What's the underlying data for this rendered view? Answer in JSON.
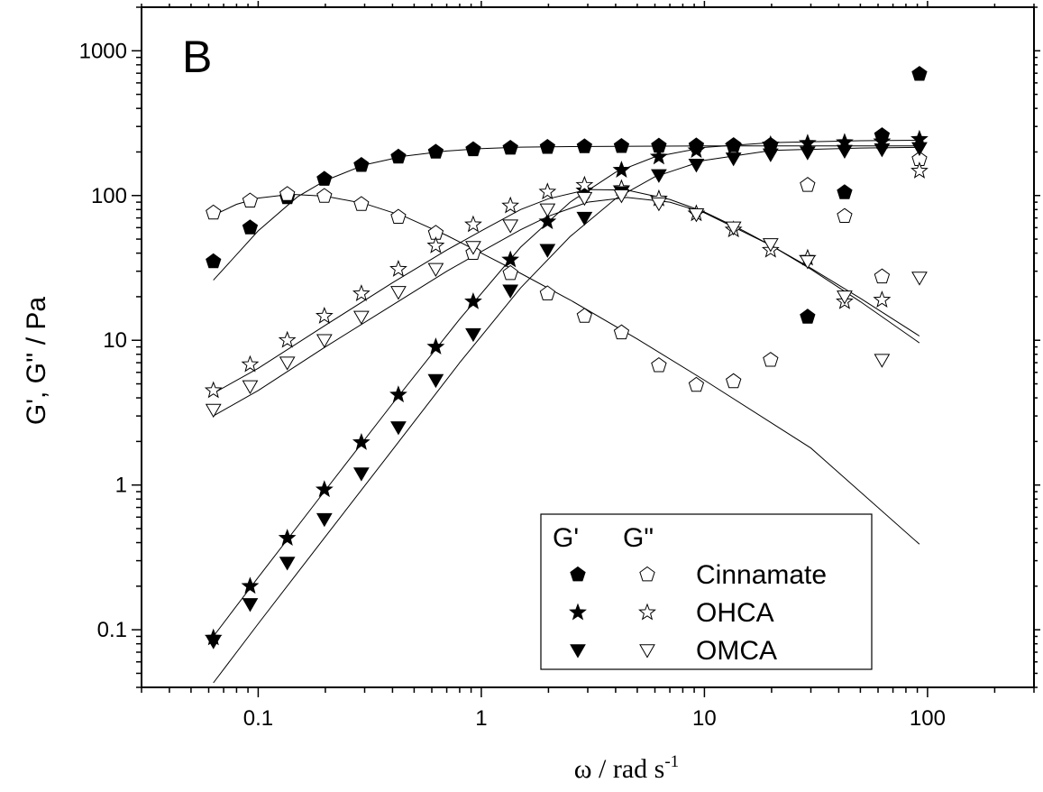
{
  "chart_data": {
    "type": "scatter",
    "panel_label": "B",
    "xlabel": "ω / rad s",
    "xlabel_sup": "-1",
    "ylabel": "G', G'' / Pa",
    "xscale": "log",
    "yscale": "log",
    "xlim": [
      0.03,
      300
    ],
    "ylim": [
      0.04,
      2000
    ],
    "x_ticks": [
      0.1,
      1,
      10,
      100
    ],
    "x_tick_labels": [
      "0.1",
      "1",
      "10",
      "100"
    ],
    "y_ticks": [
      0.1,
      1,
      10,
      100,
      1000
    ],
    "y_tick_labels": [
      "0.1",
      "1",
      "10",
      "100",
      "1000"
    ],
    "legend": {
      "placement": "bottom-right",
      "header_gp": "G'",
      "header_gpp": "G\"",
      "entries": [
        "Cinnamate",
        "OHCA",
        "OMCA"
      ]
    },
    "series": [
      {
        "name": "Cinnamate",
        "modulus": "G'",
        "marker": "pentagon",
        "filled": true,
        "x": [
          0.063,
          0.092,
          0.135,
          0.198,
          0.29,
          0.425,
          0.625,
          0.92,
          1.35,
          1.98,
          2.9,
          4.25,
          6.25,
          9.2,
          13.5,
          19.8,
          29,
          42.5,
          62.5,
          92
        ],
        "y": [
          35,
          60,
          97,
          130,
          162,
          185,
          200,
          208,
          213,
          216,
          218,
          219,
          220,
          221,
          222,
          223,
          14.5,
          105,
          260,
          690
        ]
      },
      {
        "name": "Cinnamate",
        "modulus": "G\"",
        "marker": "pentagon",
        "filled": false,
        "x": [
          0.063,
          0.092,
          0.135,
          0.198,
          0.29,
          0.425,
          0.625,
          0.92,
          1.35,
          1.98,
          2.9,
          4.25,
          6.25,
          9.2,
          13.5,
          19.8,
          29,
          42.5,
          62.5,
          92
        ],
        "y": [
          76,
          92,
          102,
          99,
          87,
          71,
          55,
          40,
          29,
          21,
          14.7,
          11.3,
          6.7,
          4.9,
          5.2,
          7.3,
          118,
          72,
          27.5,
          178
        ]
      },
      {
        "name": "OHCA",
        "modulus": "G'",
        "marker": "star",
        "filled": true,
        "x": [
          0.063,
          0.092,
          0.135,
          0.198,
          0.29,
          0.425,
          0.625,
          0.92,
          1.35,
          1.98,
          2.9,
          4.25,
          6.25,
          9.2,
          13.5,
          19.8,
          29,
          42.5,
          62.5,
          92
        ],
        "y": [
          0.088,
          0.2,
          0.43,
          0.93,
          1.97,
          4.2,
          9,
          18.5,
          36,
          66,
          108,
          150,
          185,
          205,
          218,
          225,
          230,
          233,
          236,
          245
        ]
      },
      {
        "name": "OHCA",
        "modulus": "G\"",
        "marker": "star",
        "filled": false,
        "x": [
          0.063,
          0.092,
          0.135,
          0.198,
          0.29,
          0.425,
          0.625,
          0.92,
          1.35,
          1.98,
          2.9,
          4.25,
          6.25,
          9.2,
          13.5,
          19.8,
          29,
          42.5,
          62.5,
          92
        ],
        "y": [
          4.5,
          6.8,
          10,
          14.7,
          21,
          31,
          45,
          63,
          85,
          106,
          118,
          112,
          95,
          75,
          58,
          42,
          37,
          18.5,
          19,
          148
        ]
      },
      {
        "name": "OMCA",
        "modulus": "G'",
        "marker": "triangle-down",
        "filled": true,
        "x": [
          0.063,
          0.092,
          0.135,
          0.198,
          0.29,
          0.425,
          0.625,
          0.92,
          1.35,
          1.98,
          2.9,
          4.25,
          6.25,
          9.2,
          13.5,
          19.8,
          29,
          42.5,
          62.5,
          92
        ],
        "y": [
          0.083,
          0.15,
          0.29,
          0.58,
          1.2,
          2.5,
          5.3,
          11,
          22,
          42,
          70,
          105,
          138,
          163,
          180,
          192,
          198,
          203,
          208,
          212
        ]
      },
      {
        "name": "OMCA",
        "modulus": "G\"",
        "marker": "triangle-down",
        "filled": false,
        "x": [
          0.063,
          0.092,
          0.135,
          0.198,
          0.29,
          0.425,
          0.625,
          0.92,
          1.35,
          1.98,
          2.9,
          4.25,
          6.25,
          9.2,
          13.5,
          19.8,
          29,
          42.5,
          62.5,
          92
        ],
        "y": [
          3.3,
          4.8,
          7,
          10,
          14.5,
          21.5,
          31,
          44,
          62,
          80,
          96,
          100,
          88,
          74,
          60,
          46,
          35,
          20,
          7.3,
          27
        ]
      }
    ],
    "fit_lines": [
      {
        "x": [
          0.063,
          0.1,
          0.15,
          0.2,
          0.3,
          0.45,
          0.7,
          1,
          1.5,
          2.5,
          5,
          10,
          30,
          92
        ],
        "y": [
          26,
          57,
          98,
          127,
          163,
          187,
          203,
          211,
          216,
          218,
          219,
          220,
          220,
          220
        ]
      },
      {
        "x": [
          0.063,
          0.08,
          0.1,
          0.14,
          0.2,
          0.3,
          0.45,
          0.7,
          1,
          1.5,
          2.5,
          5,
          10,
          30,
          92
        ],
        "y": [
          73,
          87,
          96,
          102,
          99,
          88,
          72,
          53,
          40,
          29,
          19,
          10.2,
          5.3,
          1.8,
          0.39
        ]
      },
      {
        "x": [
          0.063,
          0.1,
          0.2,
          0.4,
          0.8,
          1.5,
          2.5,
          4,
          6,
          10,
          20,
          50,
          92
        ],
        "y": [
          0.09,
          0.23,
          0.92,
          3.65,
          14,
          44,
          90,
          145,
          185,
          215,
          232,
          239,
          241
        ]
      },
      {
        "x": [
          0.063,
          0.1,
          0.2,
          0.4,
          0.7,
          1,
          1.5,
          2,
          3,
          4.5,
          7,
          10,
          15,
          20,
          30,
          50,
          92
        ],
        "y": [
          4.3,
          6.4,
          12.7,
          25,
          42,
          57,
          80,
          95,
          110,
          109,
          94,
          77,
          57,
          45,
          31.5,
          19.5,
          10.7
        ]
      },
      {
        "x": [
          0.063,
          0.1,
          0.2,
          0.4,
          0.8,
          1.5,
          2.5,
          4,
          6,
          10,
          20,
          50,
          92
        ],
        "y": [
          0.043,
          0.11,
          0.44,
          1.75,
          7,
          23,
          52,
          95,
          135,
          175,
          205,
          213,
          215
        ]
      },
      {
        "x": [
          0.063,
          0.1,
          0.2,
          0.4,
          0.7,
          1,
          1.5,
          2,
          3,
          4.5,
          7,
          10,
          15,
          20,
          30,
          50,
          92
        ],
        "y": [
          3,
          4.5,
          9,
          17.5,
          30,
          41,
          58,
          72,
          90,
          97,
          90,
          76,
          56,
          45,
          31,
          18.5,
          9.6
        ]
      }
    ]
  }
}
